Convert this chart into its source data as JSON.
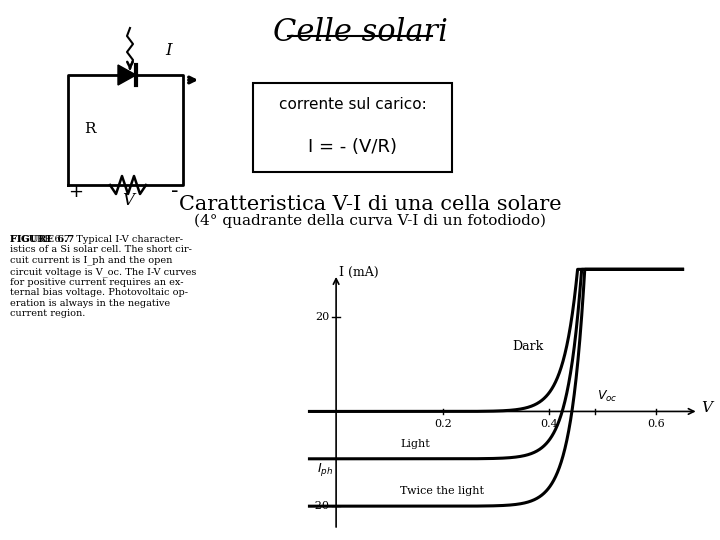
{
  "title": "Celle solari",
  "box_text_line1": "corrente sul carico:",
  "box_text_line2": "I = - (V/R)",
  "subtitle": "Caratteristica V-I di una cella solare",
  "subtitle2": "(4° quadrante della curva V-I di un fotodiodo)",
  "figure_caption_bold": "FIGURE 6.7",
  "figure_caption_rest": "  Typical I-V character-\nistics of a Si solar cell. The short cir-\ncuit current is I_ph and the open\ncircuit voltage is V_oc. The I-V curves\nfor positive current requires an ex-\nternal bias voltage. Photovoltaic op-\neration is always in the negative\ncurrent region.",
  "bg_color": "#ffffff",
  "text_color": "#000000",
  "graph_xlabel": "V",
  "graph_ylabel": "I (mA)",
  "dark_label": "Dark",
  "light_label": "Light",
  "twice_label": "Twice the light",
  "voc_label": "V_oc",
  "iph_label": "I_ph"
}
